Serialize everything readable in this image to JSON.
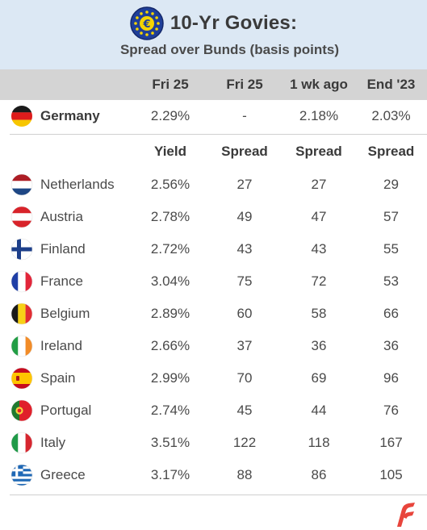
{
  "header": {
    "title": "10-Yr Govies:",
    "subtitle": "Spread over Bunds (basis points)"
  },
  "columns": [
    "Fri 25",
    "Fri 25",
    "1 wk ago",
    "End '23"
  ],
  "germany": {
    "name": "Germany",
    "values": [
      "2.29%",
      "-",
      "2.18%",
      "2.03%"
    ],
    "flag": "de"
  },
  "subheaders": [
    "Yield",
    "Spread",
    "Spread",
    "Spread"
  ],
  "rows": [
    {
      "name": "Netherlands",
      "flag": "nl",
      "values": [
        "2.56%",
        "27",
        "27",
        "29"
      ]
    },
    {
      "name": "Austria",
      "flag": "at",
      "values": [
        "2.78%",
        "49",
        "47",
        "57"
      ]
    },
    {
      "name": "Finland",
      "flag": "fi",
      "values": [
        "2.72%",
        "43",
        "43",
        "55"
      ]
    },
    {
      "name": "France",
      "flag": "fr",
      "values": [
        "3.04%",
        "75",
        "72",
        "53"
      ]
    },
    {
      "name": "Belgium",
      "flag": "be",
      "values": [
        "2.89%",
        "60",
        "58",
        "66"
      ]
    },
    {
      "name": "Ireland",
      "flag": "ie",
      "values": [
        "2.66%",
        "37",
        "36",
        "36"
      ]
    },
    {
      "name": "Spain",
      "flag": "es",
      "values": [
        "2.99%",
        "70",
        "69",
        "96"
      ]
    },
    {
      "name": "Portugal",
      "flag": "pt",
      "values": [
        "2.74%",
        "45",
        "44",
        "76"
      ]
    },
    {
      "name": "Italy",
      "flag": "it",
      "values": [
        "3.51%",
        "122",
        "118",
        "167"
      ]
    },
    {
      "name": "Greece",
      "flag": "gr",
      "values": [
        "3.17%",
        "88",
        "86",
        "105"
      ]
    }
  ],
  "colors": {
    "header_bg": "#dce8f4",
    "column_header_bg": "#d4d4d4",
    "eu_blue": "#1f3f99",
    "eu_gold": "#f5d400",
    "logo_red": "#e8453c"
  },
  "icons": {
    "title_icon": "euro-coin-icon",
    "brand_logo": "stripes-logo-icon"
  }
}
